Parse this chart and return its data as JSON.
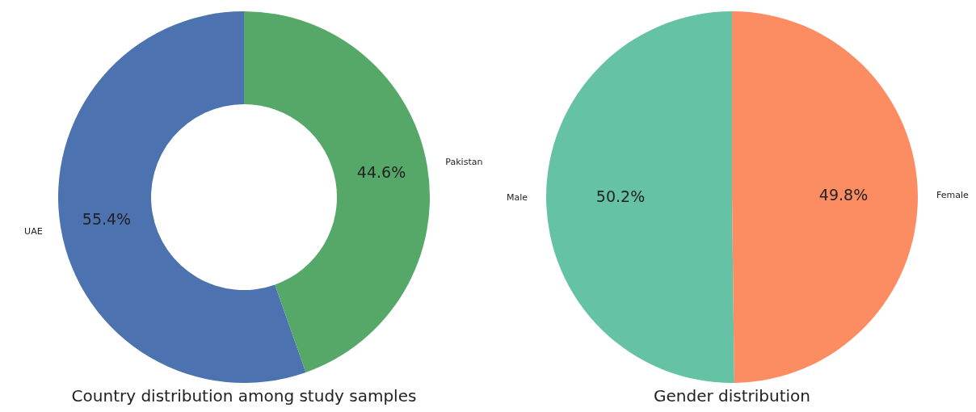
{
  "chart_data": [
    {
      "type": "donut",
      "title": "Country distribution among study samples",
      "categories": [
        "UAE",
        "Pakistan"
      ],
      "values": [
        55.4,
        44.6
      ],
      "colors": [
        "#4c72b0",
        "#55a868"
      ],
      "value_labels": [
        "55.4%",
        "44.6%"
      ],
      "legend": false
    },
    {
      "type": "pie",
      "title": "Gender distribution",
      "categories": [
        "Male",
        "Female"
      ],
      "values": [
        50.2,
        49.8
      ],
      "colors": [
        "#66c2a5",
        "#fc8d62"
      ],
      "value_labels": [
        "50.2%",
        "49.8%"
      ],
      "legend": false
    }
  ]
}
